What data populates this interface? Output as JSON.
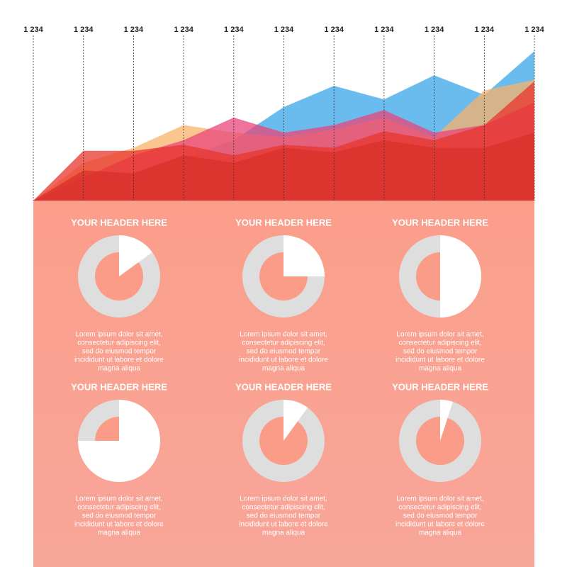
{
  "chart_data": [
    {
      "type": "area",
      "categories": [
        "1 234",
        "1 234",
        "1 234",
        "1 234",
        "1 234",
        "1 234",
        "1 234",
        "1 234",
        "1 234",
        "1 234",
        "1 234"
      ],
      "ylim": [
        0,
        100
      ],
      "series": [
        {
          "color": "#3aa6e8",
          "values": [
            0,
            10,
            18,
            28,
            40,
            62,
            76,
            67,
            83,
            70,
            99
          ]
        },
        {
          "color": "#f8b26a",
          "values": [
            0,
            25,
            35,
            50,
            45,
            42,
            47,
            55,
            42,
            73,
            80
          ]
        },
        {
          "color": "#e8457a",
          "values": [
            0,
            15,
            30,
            40,
            55,
            45,
            50,
            60,
            45,
            50,
            65
          ]
        },
        {
          "color": "#e8352e",
          "values": [
            0,
            33,
            33,
            37,
            30,
            37,
            35,
            46,
            40,
            50,
            79
          ]
        },
        {
          "color": "#d9302a",
          "values": [
            0,
            20,
            18,
            30,
            25,
            35,
            32,
            40,
            35,
            35,
            45
          ]
        }
      ]
    },
    {
      "type": "donut",
      "panels": [
        {
          "header": "YOUR HEADER HERE",
          "value": 15,
          "lines": [
            "Lorem ipsum dolor sit amet,",
            "consectetur adipiscing elit,",
            "sed do eiusmod tempor",
            "incididunt ut labore et dolore",
            "magna aliqua"
          ]
        },
        {
          "header": "YOUR HEADER HERE",
          "value": 25,
          "lines": [
            "Lorem ipsum dolor sit amet,",
            "consectetur adipiscing elit,",
            "sed do eiusmod tempor",
            "incididunt ut labore et dolore",
            "magna aliqua"
          ]
        },
        {
          "header": "YOUR HEADER HERE",
          "value": 50,
          "lines": [
            "Lorem ipsum dolor sit amet,",
            "consectetur adipiscing elit,",
            "sed do eiusmod tempor",
            "incididunt ut labore et dolore",
            "magna aliqua"
          ]
        },
        {
          "header": "YOUR HEADER HERE",
          "value": 75,
          "lines": [
            "Lorem ipsum dolor sit amet,",
            "consectetur adipiscing elit,",
            "sed do eiusmod tempor",
            "incididunt ut labore et dolore",
            "magna aliqua"
          ]
        },
        {
          "header": "YOUR HEADER HERE",
          "value": 10,
          "lines": [
            "Lorem ipsum dolor sit amet,",
            "consectetur adipiscing elit,",
            "sed do eiusmod tempor",
            "incididunt ut labore et dolore",
            "magna aliqua"
          ]
        },
        {
          "header": "YOUR HEADER HERE",
          "value": 5,
          "lines": [
            "Lorem ipsum dolor sit amet,",
            "consectetur adipiscing elit,",
            "sed do eiusmod tempor",
            "incididunt ut labore et dolore",
            "magna aliqua"
          ]
        }
      ]
    }
  ]
}
